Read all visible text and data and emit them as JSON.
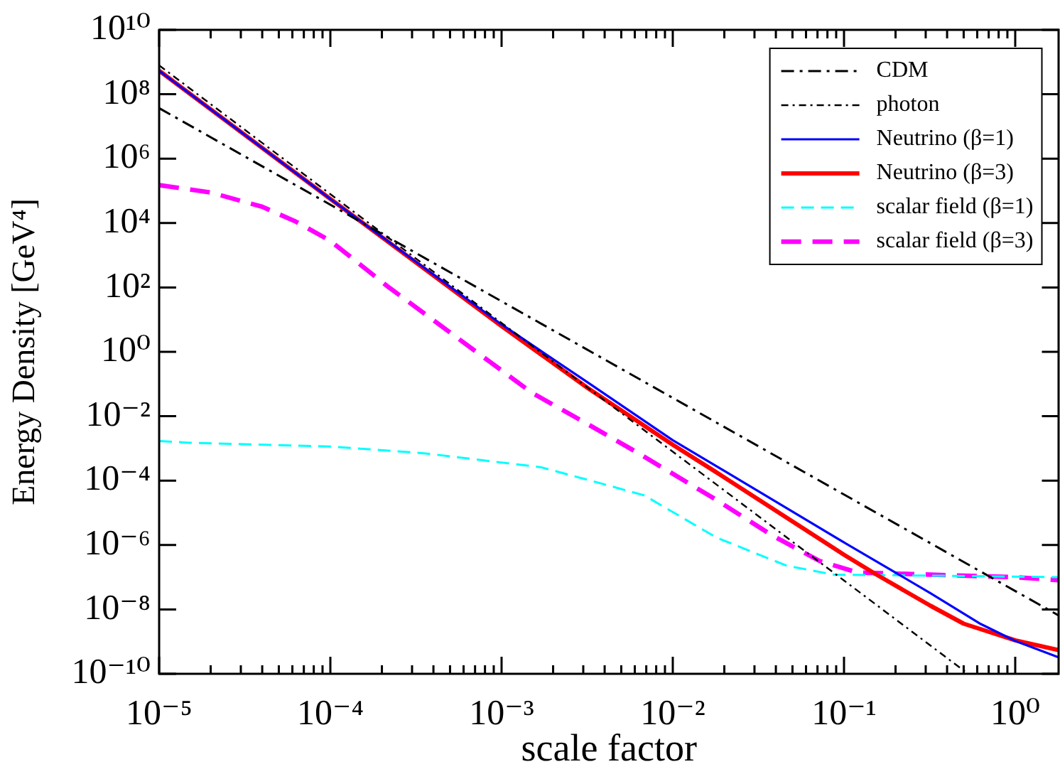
{
  "chart_data": {
    "type": "line",
    "xlabel": "scale factor",
    "ylabel": "Energy Density [GeV⁴]",
    "log": "xy",
    "legend": "top right",
    "xlim": [
      1e-05,
      1.8
    ],
    "ylim": [
      1e-10,
      10000000000.0
    ],
    "xticks": [
      {
        "value": 1e-05,
        "label": "10⁻⁵"
      },
      {
        "value": 2e-05,
        "label": null
      },
      {
        "value": 3e-05,
        "label": null
      },
      {
        "value": 4e-05,
        "label": null
      },
      {
        "value": 5e-05,
        "label": null
      },
      {
        "value": 6e-05,
        "label": null
      },
      {
        "value": 7e-05,
        "label": null
      },
      {
        "value": 8e-05,
        "label": null
      },
      {
        "value": 9e-05,
        "label": null
      },
      {
        "value": 0.0001,
        "label": "10⁻⁴"
      },
      {
        "value": 0.0002,
        "label": null
      },
      {
        "value": 0.0003,
        "label": null
      },
      {
        "value": 0.0004,
        "label": null
      },
      {
        "value": 0.0005,
        "label": null
      },
      {
        "value": 0.0006,
        "label": null
      },
      {
        "value": 0.0007,
        "label": null
      },
      {
        "value": 0.0008,
        "label": null
      },
      {
        "value": 0.0009,
        "label": null
      },
      {
        "value": 0.001,
        "label": "10⁻³"
      },
      {
        "value": 0.002,
        "label": null
      },
      {
        "value": 0.003,
        "label": null
      },
      {
        "value": 0.004,
        "label": null
      },
      {
        "value": 0.005,
        "label": null
      },
      {
        "value": 0.006,
        "label": null
      },
      {
        "value": 0.007,
        "label": null
      },
      {
        "value": 0.008,
        "label": null
      },
      {
        "value": 0.009,
        "label": null
      },
      {
        "value": 0.01,
        "label": "10⁻²"
      },
      {
        "value": 0.02,
        "label": null
      },
      {
        "value": 0.03,
        "label": null
      },
      {
        "value": 0.04,
        "label": null
      },
      {
        "value": 0.05,
        "label": null
      },
      {
        "value": 0.06,
        "label": null
      },
      {
        "value": 0.07,
        "label": null
      },
      {
        "value": 0.08,
        "label": null
      },
      {
        "value": 0.09,
        "label": null
      },
      {
        "value": 0.1,
        "label": "10⁻¹"
      },
      {
        "value": 0.2,
        "label": null
      },
      {
        "value": 0.3,
        "label": null
      },
      {
        "value": 0.4,
        "label": null
      },
      {
        "value": 0.5,
        "label": null
      },
      {
        "value": 0.6,
        "label": null
      },
      {
        "value": 0.7,
        "label": null
      },
      {
        "value": 0.8,
        "label": null
      },
      {
        "value": 0.9,
        "label": null
      },
      {
        "value": 1,
        "label": "10⁰"
      }
    ],
    "yticks": [
      {
        "value": 1e-10,
        "label": "10⁻¹⁰"
      },
      {
        "value": 1e-08,
        "label": "10⁻⁸"
      },
      {
        "value": 1e-06,
        "label": "10⁻⁶"
      },
      {
        "value": 0.0001,
        "label": "10⁻⁴"
      },
      {
        "value": 0.01,
        "label": "10⁻²"
      },
      {
        "value": 1,
        "label": "10⁰"
      },
      {
        "value": 100.0,
        "label": "10²"
      },
      {
        "value": 10000.0,
        "label": "10⁴"
      },
      {
        "value": 1000000.0,
        "label": "10⁶"
      },
      {
        "value": 100000000.0,
        "label": "10⁸"
      },
      {
        "value": 10000000000.0,
        "label": "10¹⁰"
      }
    ],
    "series": [
      {
        "name": "CDM",
        "color": "#000000",
        "line_style": "dashdot",
        "x": [
          1e-05,
          0.001,
          0.1,
          1.8
        ],
        "values": [
          37000000.0,
          37,
          3.7e-05,
          6.4e-09
        ]
      },
      {
        "name": "photon",
        "color": "#000000",
        "line_style": "dashdot",
        "x": [
          1e-05,
          0.001,
          0.1,
          0.53
        ],
        "values": [
          790000000.0,
          7.9,
          7.9e-08,
          1e-10
        ]
      },
      {
        "name": "Neutrino (β=1)",
        "color": "#0000ff",
        "line_style": "solid",
        "x": [
          1e-05,
          0.0001,
          0.001,
          0.0032,
          0.01,
          0.032,
          0.1,
          0.32,
          0.63,
          1,
          1.8
        ],
        "values": [
          540000000.0,
          56000.0,
          7.1,
          0.11,
          0.0018,
          4.5e-05,
          1.2e-06,
          3.2e-08,
          3.5e-09,
          1.05e-09,
          3.2e-10
        ]
      },
      {
        "name": "Neutrino (β=3)",
        "color": "#ff0000",
        "line_style": "solid",
        "x": [
          1e-05,
          0.0001,
          0.001,
          0.0032,
          0.01,
          0.018,
          0.032,
          0.1,
          0.155,
          0.32,
          0.5,
          1,
          1.8
        ],
        "values": [
          540000000.0,
          56000.0,
          6.3,
          0.074,
          0.0013,
          0.00018,
          2.5e-05,
          5e-07,
          1.2e-07,
          1.3e-08,
          3.6e-09,
          1.1e-09,
          5.4e-10
        ]
      },
      {
        "name": "scalar field (β=1)",
        "color": "#00ffff",
        "line_style": "dashed",
        "x": [
          1e-05,
          1.5e-05,
          0.0001,
          0.00036,
          0.0017,
          0.0032,
          0.0068,
          0.018,
          0.046,
          0.087,
          0.43,
          1.8
        ],
        "values": [
          0.0017,
          0.0015,
          0.00115,
          0.0007,
          0.00026,
          0.000105,
          3.5e-05,
          1.7e-06,
          2.3e-07,
          1.2e-07,
          1.1e-07,
          1e-07
        ]
      },
      {
        "name": "scalar field (β=3)",
        "color": "#ff00ff",
        "line_style": "dashed",
        "x": [
          1e-05,
          2e-05,
          4e-05,
          6.3e-05,
          0.0001,
          0.00022,
          0.0005,
          0.0015,
          0.0032,
          0.0063,
          0.018,
          0.038,
          0.072,
          0.12,
          0.25,
          1,
          1.8
        ],
        "values": [
          150000.0,
          89000.0,
          32000.0,
          11000.0,
          2800.0,
          100,
          4,
          0.054,
          0.0056,
          0.00071,
          2.5e-05,
          2e-06,
          3.2e-07,
          1.4e-07,
          1.25e-07,
          1e-07,
          8.1e-08
        ]
      }
    ]
  }
}
